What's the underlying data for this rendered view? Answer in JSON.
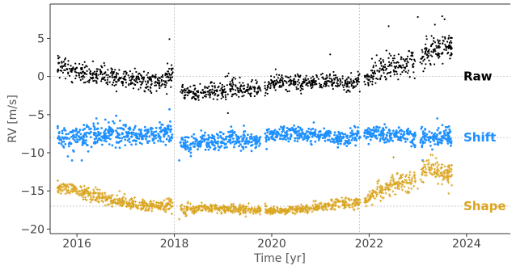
{
  "chart_data": {
    "type": "scatter",
    "title": "",
    "xlabel": "Time [yr]",
    "ylabel": "RV [m/s]",
    "xlim": [
      2015.45,
      2024.9
    ],
    "ylim": [
      -20.6,
      9.5
    ],
    "x_ticks": [
      2016,
      2018,
      2020,
      2022,
      2024
    ],
    "x_tick_labels": [
      "2016",
      "2018",
      "2020",
      "2022",
      "2024"
    ],
    "y_ticks": [
      5,
      0,
      -5,
      -10,
      -15,
      -20
    ],
    "y_tick_labels": [
      "5",
      "0",
      "−5",
      "−10",
      "−15",
      "−20"
    ],
    "vertical_lines": [
      2018.0,
      2021.8
    ],
    "grid": false,
    "series": [
      {
        "name": "Raw",
        "color": "#000000",
        "marker": "dot",
        "baseline": 0,
        "x": [
          2015.6,
          2015.8,
          2016.0,
          2016.2,
          2016.4,
          2016.6,
          2016.8,
          2017.0,
          2017.2,
          2017.4,
          2017.6,
          2017.8,
          2017.95,
          2018.2,
          2018.4,
          2018.6,
          2018.8,
          2019.0,
          2019.2,
          2019.4,
          2019.6,
          2019.8,
          2020.0,
          2020.2,
          2020.4,
          2020.6,
          2020.8,
          2021.0,
          2021.2,
          2021.4,
          2021.6,
          2021.8,
          2022.0,
          2022.2,
          2022.4,
          2022.6,
          2022.8,
          2023.0,
          2023.2,
          2023.4,
          2023.6,
          2023.7
        ],
        "y": [
          1.2,
          1.0,
          0.8,
          0.5,
          0.2,
          0.0,
          -0.2,
          -0.3,
          -0.4,
          -0.5,
          -0.6,
          -0.5,
          0.5,
          -2.0,
          -2.3,
          -2.0,
          -1.8,
          -2.0,
          -1.5,
          -1.5,
          -1.8,
          -1.5,
          -1.0,
          -0.5,
          -0.8,
          -0.8,
          -1.0,
          -0.5,
          -0.6,
          -0.8,
          -1.0,
          -0.5,
          0.0,
          1.0,
          1.5,
          1.5,
          2.0,
          1.0,
          3.5,
          3.5,
          4.0,
          3.5
        ],
        "spread": [
          1.2,
          1.1,
          1.0,
          1.0,
          1.0,
          1.0,
          1.0,
          1.0,
          1.0,
          1.0,
          1.0,
          1.0,
          1.5,
          0.9,
          0.9,
          0.9,
          1.0,
          1.0,
          1.2,
          1.0,
          0.9,
          0.9,
          0.9,
          0.9,
          0.9,
          0.9,
          0.9,
          0.9,
          0.9,
          0.9,
          0.9,
          1.0,
          1.0,
          1.5,
          1.6,
          1.5,
          1.6,
          1.8,
          1.8,
          1.6,
          1.6,
          1.6
        ],
        "extremes": [
          [
            2023.0,
            7.8
          ],
          [
            2023.5,
            7.9
          ],
          [
            2023.55,
            7.5
          ],
          [
            2022.4,
            6.6
          ],
          [
            2019.1,
            -4.8
          ],
          [
            2017.9,
            4.9
          ],
          [
            2023.35,
            6.8
          ],
          [
            2021.2,
            2.9
          ]
        ]
      },
      {
        "name": "Shift",
        "color": "#1e90ff",
        "marker": "dot",
        "baseline": -8,
        "x": [
          2015.6,
          2015.8,
          2016.0,
          2016.2,
          2016.4,
          2016.6,
          2016.8,
          2017.0,
          2017.2,
          2017.4,
          2017.6,
          2017.8,
          2017.95,
          2018.2,
          2018.4,
          2018.6,
          2018.8,
          2019.0,
          2019.2,
          2019.4,
          2019.6,
          2019.8,
          2020.0,
          2020.2,
          2020.4,
          2020.6,
          2020.8,
          2021.0,
          2021.2,
          2021.4,
          2021.6,
          2021.8,
          2022.0,
          2022.2,
          2022.4,
          2022.6,
          2022.8,
          2023.0,
          2023.2,
          2023.4,
          2023.6,
          2023.7
        ],
        "y": [
          -8.0,
          -8.2,
          -8.0,
          -7.6,
          -7.8,
          -7.5,
          -7.5,
          -7.5,
          -7.6,
          -7.8,
          -7.4,
          -7.2,
          -7.5,
          -9.0,
          -8.8,
          -8.5,
          -8.6,
          -8.2,
          -8.0,
          -8.5,
          -8.4,
          -8.2,
          -7.6,
          -7.5,
          -7.4,
          -7.5,
          -7.6,
          -7.8,
          -7.8,
          -8.0,
          -8.0,
          -7.5,
          -7.5,
          -7.5,
          -7.8,
          -7.6,
          -7.5,
          -8.5,
          -7.8,
          -8.0,
          -8.2,
          -8.0
        ],
        "spread": [
          1.1,
          1.1,
          1.1,
          1.1,
          1.1,
          1.1,
          1.1,
          1.1,
          1.1,
          1.1,
          1.1,
          1.1,
          1.5,
          0.9,
          0.9,
          1.0,
          1.0,
          1.2,
          1.1,
          1.0,
          0.9,
          0.9,
          0.8,
          0.8,
          0.8,
          0.8,
          0.8,
          0.8,
          0.8,
          0.8,
          0.9,
          0.9,
          0.8,
          0.8,
          0.9,
          0.9,
          0.9,
          1.4,
          1.0,
          1.0,
          1.0,
          1.0
        ],
        "extremes": [
          [
            2017.9,
            -4.3
          ],
          [
            2023.4,
            -5.5
          ],
          [
            2016.4,
            -5.5
          ],
          [
            2015.9,
            -11.0
          ],
          [
            2018.1,
            -11.0
          ],
          [
            2023.1,
            -11.0
          ],
          [
            2016.1,
            -11.0
          ]
        ]
      },
      {
        "name": "Shape",
        "color": "#daa520",
        "marker": "plus",
        "baseline": -17,
        "x": [
          2015.6,
          2015.8,
          2016.0,
          2016.2,
          2016.4,
          2016.6,
          2016.8,
          2017.0,
          2017.2,
          2017.4,
          2017.6,
          2017.8,
          2017.95,
          2018.2,
          2018.4,
          2018.6,
          2018.8,
          2019.0,
          2019.2,
          2019.4,
          2019.6,
          2019.8,
          2020.0,
          2020.2,
          2020.4,
          2020.6,
          2020.8,
          2021.0,
          2021.2,
          2021.4,
          2021.6,
          2021.8,
          2022.0,
          2022.2,
          2022.4,
          2022.6,
          2022.8,
          2023.0,
          2023.2,
          2023.4,
          2023.6,
          2023.7
        ],
        "y": [
          -14.5,
          -14.8,
          -15.0,
          -15.3,
          -15.6,
          -16.0,
          -16.3,
          -16.6,
          -16.8,
          -16.9,
          -17.0,
          -17.0,
          -16.5,
          -17.5,
          -17.4,
          -17.2,
          -17.2,
          -17.3,
          -17.3,
          -17.4,
          -17.5,
          -17.6,
          -17.6,
          -17.6,
          -17.5,
          -17.4,
          -17.2,
          -17.0,
          -16.8,
          -16.6,
          -16.6,
          -16.5,
          -16.0,
          -15.0,
          -14.5,
          -14.0,
          -14.0,
          -13.0,
          -12.0,
          -12.5,
          -12.8,
          -12.5
        ],
        "spread": [
          0.7,
          0.7,
          0.7,
          0.7,
          0.7,
          0.7,
          0.7,
          0.6,
          0.6,
          0.6,
          0.6,
          0.6,
          0.8,
          0.5,
          0.5,
          0.5,
          0.5,
          0.5,
          0.5,
          0.5,
          0.5,
          0.5,
          0.4,
          0.4,
          0.4,
          0.4,
          0.5,
          0.5,
          0.5,
          0.6,
          0.6,
          0.6,
          0.8,
          1.0,
          1.1,
          1.1,
          1.1,
          1.3,
          1.3,
          1.3,
          1.3,
          1.3
        ],
        "extremes": [
          [
            2017.95,
            -18.0
          ],
          [
            2022.5,
            -10.6
          ],
          [
            2023.3,
            -10.3
          ],
          [
            2023.0,
            -14.7
          ],
          [
            2018.1,
            -18.7
          ]
        ]
      }
    ]
  }
}
